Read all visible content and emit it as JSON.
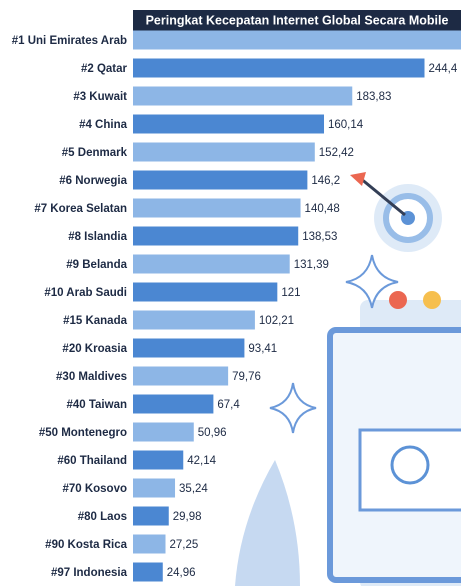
{
  "chart_data": {
    "type": "barh",
    "title": "Peringkat Kecepatan Internet Global Secara Mobile",
    "categories": [
      "#1 Uni Emirates Arab",
      "#2 Qatar",
      "#3 Kuwait",
      "#4 China",
      "#5 Denmark",
      "#6 Norwegia",
      "#7 Korea Selatan",
      "#8 Islandia",
      "#9 Belanda",
      "#10 Arab Saudi",
      "#15 Kanada",
      "#20 Kroasia",
      "#30 Maldives",
      "#40 Taiwan",
      "#50 Montenegro",
      "#60 Thailand",
      "#70 Kosovo",
      "#80 Laos",
      "#90 Kosta Rica",
      "#97 Indonesia"
    ],
    "values": [
      275,
      244.4,
      183.83,
      160.14,
      152.42,
      146.2,
      140.48,
      138.53,
      131.39,
      121,
      102.21,
      93.41,
      79.76,
      67.4,
      50.96,
      42.14,
      35.24,
      29.98,
      27.25,
      24.96
    ],
    "value_labels": [
      null,
      "244,4",
      "183,83",
      "160,14",
      "152,42",
      "146,2",
      "140,48",
      "138,53",
      "131,39",
      "121",
      "102,21",
      "93,41",
      "79,76",
      "67,4",
      "50,96",
      "42,14",
      "35,24",
      "29,98",
      "27,25",
      "24,96"
    ],
    "colors": [
      "#8db6e6",
      "#4b87d2"
    ],
    "xlim": [
      0,
      275
    ]
  }
}
